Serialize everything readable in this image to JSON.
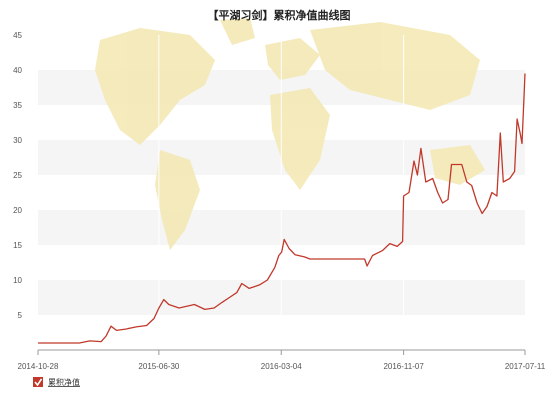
{
  "chart_data": {
    "type": "line",
    "title": "【平湖习剑】累积净值曲线图",
    "xlabel": "",
    "ylabel": "",
    "ylim": [
      0,
      45
    ],
    "y_ticks": [
      5,
      10,
      15,
      20,
      25,
      30,
      35,
      40,
      45
    ],
    "x_range": [
      "2014-10-28",
      "2017-07-11"
    ],
    "x_ticks": [
      "2014-10-28",
      "2015-06-30",
      "2016-03-04",
      "2016-11-07",
      "2017-07-11"
    ],
    "grid": "horizontal bands",
    "legend_position": "bottom-left",
    "series": [
      {
        "name": "累积净值",
        "color": "#c0392b",
        "points": [
          [
            "2014-10-28",
            1.0
          ],
          [
            "2014-12-10",
            1.0
          ],
          [
            "2015-01-20",
            1.0
          ],
          [
            "2015-02-10",
            1.3
          ],
          [
            "2015-03-05",
            1.2
          ],
          [
            "2015-03-15",
            2.0
          ],
          [
            "2015-03-25",
            3.4
          ],
          [
            "2015-04-05",
            2.8
          ],
          [
            "2015-04-25",
            3.0
          ],
          [
            "2015-05-15",
            3.3
          ],
          [
            "2015-06-05",
            3.5
          ],
          [
            "2015-06-20",
            4.5
          ],
          [
            "2015-06-30",
            6.0
          ],
          [
            "2015-07-10",
            7.2
          ],
          [
            "2015-07-20",
            6.5
          ],
          [
            "2015-08-10",
            6.0
          ],
          [
            "2015-09-10",
            6.5
          ],
          [
            "2015-10-01",
            5.8
          ],
          [
            "2015-10-20",
            6.0
          ],
          [
            "2015-11-05",
            6.8
          ],
          [
            "2015-11-20",
            7.5
          ],
          [
            "2015-12-05",
            8.2
          ],
          [
            "2015-12-15",
            9.5
          ],
          [
            "2015-12-30",
            8.8
          ],
          [
            "2016-01-20",
            9.3
          ],
          [
            "2016-02-05",
            10.0
          ],
          [
            "2016-02-20",
            11.8
          ],
          [
            "2016-02-28",
            13.5
          ],
          [
            "2016-03-05",
            14.0
          ],
          [
            "2016-03-10",
            15.8
          ],
          [
            "2016-03-20",
            14.5
          ],
          [
            "2016-04-01",
            13.6
          ],
          [
            "2016-04-20",
            13.3
          ],
          [
            "2016-05-01",
            13.0
          ],
          [
            "2016-06-20",
            13.0
          ],
          [
            "2016-08-20",
            13.0
          ],
          [
            "2016-08-25",
            12.0
          ],
          [
            "2016-09-05",
            13.5
          ],
          [
            "2016-09-25",
            14.2
          ],
          [
            "2016-10-10",
            15.2
          ],
          [
            "2016-10-25",
            14.8
          ],
          [
            "2016-11-05",
            15.5
          ],
          [
            "2016-11-07",
            22.0
          ],
          [
            "2016-11-18",
            22.5
          ],
          [
            "2016-11-28",
            27.0
          ],
          [
            "2016-12-05",
            25.0
          ],
          [
            "2016-12-12",
            28.8
          ],
          [
            "2016-12-22",
            24.0
          ],
          [
            "2017-01-05",
            24.5
          ],
          [
            "2017-01-15",
            22.5
          ],
          [
            "2017-01-25",
            21.0
          ],
          [
            "2017-02-05",
            21.5
          ],
          [
            "2017-02-12",
            26.5
          ],
          [
            "2017-03-05",
            26.5
          ],
          [
            "2017-03-15",
            24.0
          ],
          [
            "2017-03-25",
            23.5
          ],
          [
            "2017-04-05",
            21.0
          ],
          [
            "2017-04-15",
            19.5
          ],
          [
            "2017-04-25",
            20.5
          ],
          [
            "2017-05-05",
            22.5
          ],
          [
            "2017-05-15",
            22.0
          ],
          [
            "2017-05-22",
            31.0
          ],
          [
            "2017-05-28",
            24.0
          ],
          [
            "2017-06-10",
            24.5
          ],
          [
            "2017-06-20",
            25.5
          ],
          [
            "2017-06-25",
            33.0
          ],
          [
            "2017-07-01",
            31.0
          ],
          [
            "2017-07-05",
            29.5
          ],
          [
            "2017-07-11",
            39.5
          ]
        ]
      }
    ]
  },
  "colors": {
    "line": "#c0392b",
    "band": "#f5f5f5",
    "map": "#f3e7b0",
    "axis": "#999999",
    "legend_box": "#c0392b"
  }
}
